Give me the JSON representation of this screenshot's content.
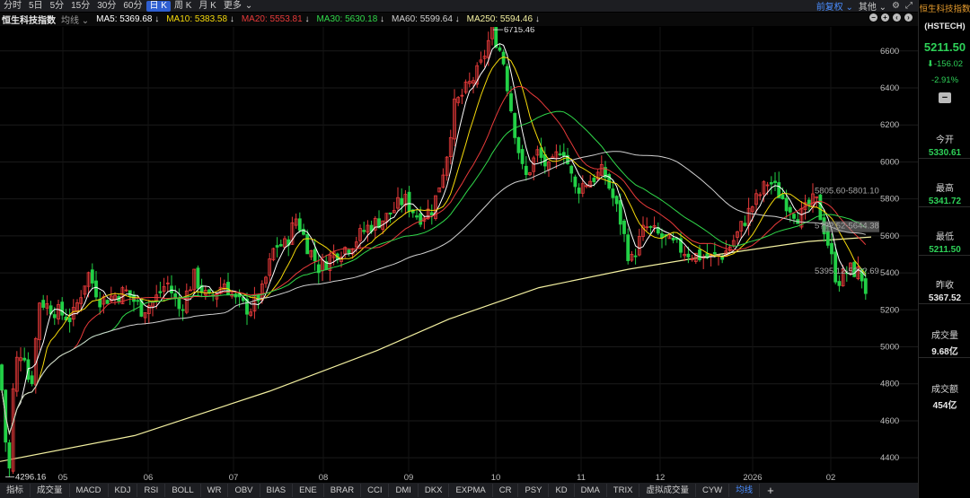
{
  "topbar": {
    "timeframes": [
      "分时",
      "5日",
      "5分",
      "15分",
      "30分",
      "60分",
      "日 K",
      "周 K",
      "月 K",
      "更多"
    ],
    "active_index": 6,
    "adjust_label": "前复权",
    "other_label": "其他"
  },
  "mabar": {
    "name": "恒生科技指数",
    "selector": "均线",
    "ma": [
      {
        "label": "MA5: 5369.68",
        "color": "#ffffff"
      },
      {
        "label": "MA10: 5383.58",
        "color": "#f5d90a"
      },
      {
        "label": "MA20: 5553.81",
        "color": "#e83a3a"
      },
      {
        "label": "MA30: 5630.18",
        "color": "#30d84a"
      },
      {
        "label": "MA60: 5599.64",
        "color": "#d0d0d0"
      },
      {
        "label": "MA250: 5594.46",
        "color": "#f3f0a0"
      }
    ],
    "arrow": "↓"
  },
  "chart_data": {
    "type": "candlestick",
    "y_ticks": [
      4400,
      4600,
      4800,
      5000,
      5200,
      5400,
      5600,
      5800,
      6000,
      6200,
      6400,
      6600
    ],
    "ylim": [
      4265,
      6730
    ],
    "x_ticks": [
      "05",
      "06",
      "07",
      "08",
      "09",
      "10",
      "11",
      "12",
      "2026",
      "02"
    ],
    "annotations": {
      "high_label": "6715.46",
      "low_label": "4296.16",
      "range_upper": "5805.60-5801.10",
      "range_mid": "5???.52-5644.38",
      "range_low": "5395.12-5???.69"
    },
    "colors": {
      "up": "#e83a3a",
      "down": "#22d046",
      "grid": "#1a1a1a"
    }
  },
  "bottombar": {
    "items": [
      "指标",
      "成交量",
      "MACD",
      "KDJ",
      "RSI",
      "BOLL",
      "WR",
      "OBV",
      "BIAS",
      "ENE",
      "BRAR",
      "CCI",
      "DMI",
      "DKX",
      "EXPMA",
      "CR",
      "PSY",
      "KD",
      "DMA",
      "TRIX",
      "虚拟成交量",
      "CYW",
      "均线"
    ],
    "active_index": 22
  },
  "panel": {
    "title": "恒生科技指数",
    "code": "(HSTECH)",
    "price": "5211.50",
    "change": "-156.02",
    "change_pct": "-2.91%",
    "stats": [
      {
        "label": "今开",
        "value": "5330.61"
      },
      {
        "label": "最高",
        "value": "5341.72"
      },
      {
        "label": "最低",
        "value": "5211.50"
      },
      {
        "label": "昨收",
        "value": "5367.52"
      },
      {
        "label": "成交量",
        "value": "9.68亿"
      },
      {
        "label": "成交额",
        "value": "454亿"
      }
    ]
  }
}
